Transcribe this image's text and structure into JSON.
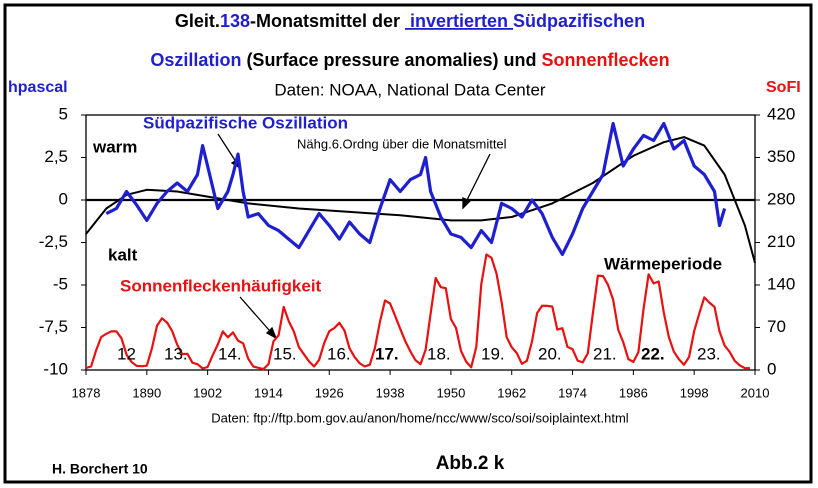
{
  "chart_data": {
    "type": "line",
    "title_lines": [
      [
        {
          "text": "Gleit.",
          "color": "#000000"
        },
        {
          "text": "138",
          "color": "#1f1fd0"
        },
        {
          "text": "-Monatsmittel der ",
          "color": "#000000"
        },
        {
          "text": " invertierten ",
          "color": "#1f1fd0",
          "underline": true
        },
        {
          "text": "Südpazifischen",
          "color": "#1f1fd0"
        }
      ],
      [
        {
          "text": "Oszillation",
          "color": "#1f1fd0"
        },
        {
          "text": " (Surface pressure anomalies) und ",
          "color": "#000000"
        },
        {
          "text": "Sonnenflecken",
          "color": "#e81010"
        }
      ]
    ],
    "subtitle": "Daten: NOAA, National Data Center",
    "ylabel": "hpascal",
    "y2label": "SoFI",
    "source": "Daten: ftp://ftp.bom.gov.au/anon/home/ncc/www/sco/soi/soiplaintext.html",
    "author": "H. Borchert 10",
    "figure_label": "Abb.2 k",
    "annotations": {
      "warm": "warm",
      "kalt": "kalt",
      "soi": "Südpazifische Oszillation",
      "fit": "Nähg.6.Ordng über die Monatsmittel",
      "sunspots": "Sonnenfleckenhäufigkeit",
      "warm_period": "Wärmeperiode"
    },
    "cycles": [
      {
        "label": "12",
        "bold": false
      },
      {
        "label": "13.",
        "bold": false
      },
      {
        "label": "14.",
        "bold": false
      },
      {
        "label": "15.",
        "bold": false
      },
      {
        "label": "16.",
        "bold": false
      },
      {
        "label": "17.",
        "bold": true
      },
      {
        "label": "18.",
        "bold": false
      },
      {
        "label": "19.",
        "bold": false
      },
      {
        "label": "20.",
        "bold": false
      },
      {
        "label": "21.",
        "bold": false
      },
      {
        "label": "22.",
        "bold": true
      },
      {
        "label": "23.",
        "bold": false
      }
    ],
    "xlim": [
      1878,
      2010
    ],
    "xticks": [
      1878,
      1890,
      1902,
      1914,
      1926,
      1938,
      1950,
      1962,
      1974,
      1986,
      1998,
      2010
    ],
    "ylim": [
      -10,
      5
    ],
    "yticks": [
      -10,
      {
        "value": -7.5,
        "label": "-7,5"
      },
      -5,
      {
        "value": -2.5,
        "label": "-2,5"
      },
      0,
      {
        "value": 2.5,
        "label": "2,5"
      },
      5
    ],
    "y2lim": [
      0,
      420
    ],
    "y2ticks": [
      0,
      70,
      140,
      210,
      280,
      350,
      420
    ],
    "zero_line": true,
    "series": [
      {
        "name": "Südpazifische Oszillation",
        "color": "#1f1fd0",
        "axis": "y",
        "x": [
          1882,
          1884,
          1886,
          1888,
          1890,
          1892,
          1894,
          1896,
          1898,
          1900,
          1901,
          1902,
          1904,
          1906,
          1907,
          1908,
          1909,
          1910,
          1912,
          1914,
          1916,
          1918,
          1920,
          1922,
          1924,
          1926,
          1928,
          1930,
          1932,
          1934,
          1936,
          1938,
          1940,
          1942,
          1944,
          1945,
          1946,
          1948,
          1950,
          1952,
          1954,
          1956,
          1958,
          1960,
          1962,
          1964,
          1966,
          1968,
          1970,
          1972,
          1974,
          1976,
          1978,
          1980,
          1982,
          1984,
          1986,
          1988,
          1990,
          1992,
          1994,
          1996,
          1998,
          2000,
          2002,
          2003,
          2004
        ],
        "values": [
          -0.8,
          -0.5,
          0.5,
          -0.3,
          -1.2,
          -0.2,
          0.5,
          1,
          0.5,
          1.5,
          3.2,
          2,
          -0.5,
          0.5,
          1.5,
          2.7,
          0.5,
          -1,
          -0.8,
          -1.5,
          -1.8,
          -2.3,
          -2.8,
          -1.8,
          -0.8,
          -1.5,
          -2.3,
          -1.3,
          -2,
          -2.5,
          -0.5,
          1.2,
          0.5,
          1.2,
          1.5,
          2.5,
          0.5,
          -1,
          -2,
          -2.2,
          -2.8,
          -1.8,
          -2.5,
          -0.2,
          -0.5,
          -1,
          0,
          -0.8,
          -2.2,
          -3.2,
          -2,
          -0.5,
          0.5,
          1.5,
          4.5,
          2,
          3,
          3.8,
          3.5,
          4.5,
          3,
          3.5,
          2,
          1.5,
          0.5,
          -1.5,
          -0.5
        ]
      },
      {
        "name": "Nähg.6.Ordng über die Monatsmittel",
        "color": "#000000",
        "axis": "y",
        "x": [
          1878,
          1882,
          1886,
          1890,
          1896,
          1902,
          1910,
          1920,
          1930,
          1940,
          1950,
          1956,
          1962,
          1970,
          1978,
          1986,
          1992,
          1996,
          2000,
          2004,
          2008,
          2010
        ],
        "values": [
          -2,
          -0.5,
          0.3,
          0.6,
          0.5,
          0.2,
          -0.2,
          -0.5,
          -0.7,
          -0.9,
          -1.2,
          -1.2,
          -1,
          -0.2,
          1,
          2.6,
          3.4,
          3.7,
          3.2,
          1.5,
          -1.5,
          -3.7
        ]
      },
      {
        "name": "Sonnenfleckenhäufigkeit",
        "color": "#e81010",
        "axis": "y2",
        "x": [
          1878,
          1879,
          1880,
          1881,
          1882,
          1883,
          1884,
          1885,
          1886,
          1887,
          1888,
          1889,
          1890,
          1891,
          1892,
          1893,
          1894,
          1895,
          1896,
          1897,
          1898,
          1899,
          1900,
          1901,
          1902,
          1903,
          1904,
          1905,
          1906,
          1907,
          1908,
          1909,
          1910,
          1911,
          1912,
          1913,
          1914,
          1915,
          1916,
          1917,
          1918,
          1919,
          1920,
          1921,
          1922,
          1923,
          1924,
          1925,
          1926,
          1927,
          1928,
          1929,
          1930,
          1931,
          1932,
          1933,
          1934,
          1935,
          1936,
          1937,
          1938,
          1939,
          1940,
          1941,
          1942,
          1943,
          1944,
          1945,
          1946,
          1947,
          1948,
          1949,
          1950,
          1951,
          1952,
          1953,
          1954,
          1955,
          1956,
          1957,
          1958,
          1959,
          1960,
          1961,
          1962,
          1963,
          1964,
          1965,
          1966,
          1967,
          1968,
          1969,
          1970,
          1971,
          1972,
          1973,
          1974,
          1975,
          1976,
          1977,
          1978,
          1979,
          1980,
          1981,
          1982,
          1983,
          1984,
          1985,
          1986,
          1987,
          1988,
          1989,
          1990,
          1991,
          1992,
          1993,
          1994,
          1995,
          1996,
          1997,
          1998,
          1999,
          2000,
          2001,
          2002,
          2003,
          2004,
          2005,
          2006,
          2007,
          2008,
          2009
        ],
        "values": [
          3.4,
          6.0,
          32.3,
          54.3,
          59.7,
          63.7,
          63.5,
          52.2,
          25.4,
          13.1,
          6.8,
          6.3,
          7.1,
          35.6,
          73.0,
          85.1,
          78.0,
          64.0,
          41.8,
          26.2,
          26.7,
          12.1,
          9.5,
          2.7,
          5.0,
          24.4,
          42.0,
          63.5,
          53.8,
          62.0,
          48.5,
          43.9,
          18.6,
          5.7,
          3.6,
          1.4,
          9.6,
          47.4,
          57.1,
          103.9,
          80.6,
          63.6,
          37.6,
          26.1,
          14.2,
          5.8,
          16.7,
          44.3,
          63.9,
          69.0,
          77.8,
          64.9,
          35.7,
          21.2,
          11.1,
          5.7,
          8.7,
          36.1,
          79.7,
          114.4,
          109.6,
          88.8,
          67.8,
          47.5,
          30.6,
          16.3,
          9.6,
          33.2,
          92.6,
          151.6,
          136.3,
          134.7,
          83.9,
          69.4,
          31.5,
          13.9,
          4.4,
          38.0,
          141.7,
          190.2,
          184.8,
          159.0,
          112.3,
          53.9,
          37.6,
          27.9,
          10.2,
          15.1,
          47.0,
          93.8,
          105.9,
          105.5,
          104.5,
          66.6,
          68.9,
          38.0,
          34.5,
          15.5,
          12.6,
          27.5,
          92.5,
          155.4,
          154.6,
          140.4,
          115.9,
          66.6,
          45.9,
          17.9,
          13.4,
          29.4,
          100.2,
          157.6,
          142.6,
          145.7,
          94.3,
          54.6,
          29.9,
          17.5,
          8.6,
          21.5,
          64.3,
          93.3,
          119.6,
          111.0,
          104.0,
          63.7,
          40.4,
          29.8,
          15.2,
          7.5,
          2.9,
          3.1
        ]
      }
    ]
  }
}
